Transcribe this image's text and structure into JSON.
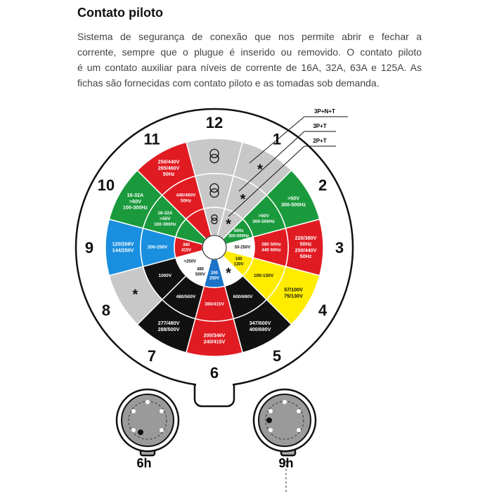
{
  "header": {
    "title": "Contato piloto",
    "paragraph": [
      "Sistema de segurança de conexão que nos permite abrir e fechar a",
      "corrente, sempre que o plugue é inserido ou removido. O contato piloto",
      "é um contato auxiliar para níveis de corrente de 16A, 32A, 63A e 125A. As",
      "fichas são fornecidas com contato piloto e as tomadas sob demanda."
    ]
  },
  "diagram": {
    "legend": [
      "3P+N+T",
      "3P+T",
      "2P+T"
    ],
    "connectors": [
      "6h",
      "9h"
    ],
    "segments": [
      {
        "hour": "12",
        "outer": {
          "color": "#c8c8c8"
        },
        "middle": {
          "color": "#c8c8c8"
        },
        "inner": {
          "color": "#c8c8c8"
        }
      },
      {
        "hour": "1",
        "outer": {
          "color": "#c8c8c8",
          "text": [
            "*"
          ]
        },
        "middle": {
          "color": "#c8c8c8",
          "text": [
            "*"
          ]
        },
        "inner": {
          "color": "#c8c8c8",
          "text": [
            "*"
          ]
        }
      },
      {
        "hour": "2",
        "outer": {
          "color": "#1a9a3c",
          "text": [
            ">50V",
            "300-500Hz"
          ]
        },
        "middle": {
          "color": "#1a9a3c",
          "text": [
            ">50V",
            "300-500Hz"
          ]
        },
        "inner": {
          "color": "#1a9a3c",
          "text": [
            "50Hz",
            "300-500Hz"
          ]
        }
      },
      {
        "hour": "3",
        "outer": {
          "color": "#e11b22",
          "text": [
            "220/380V",
            "50Hz",
            "250/440V",
            "50Hz"
          ]
        },
        "middle": {
          "color": "#e11b22",
          "text": [
            "380 50Hz",
            "440 60Hz"
          ]
        },
        "inner": {
          "color": "#ffffff",
          "text": [
            "50-250V"
          ]
        }
      },
      {
        "hour": "4",
        "outer": {
          "color": "#ffec00",
          "text": [
            "57/100V",
            "75/130V"
          ]
        },
        "middle": {
          "color": "#ffec00",
          "text": [
            "100-130V"
          ]
        },
        "inner": {
          "color": "#ffec00",
          "text": [
            "100",
            "130V"
          ]
        }
      },
      {
        "hour": "5",
        "outer": {
          "color": "#111111",
          "text": [
            "347/600V",
            "400/690V"
          ]
        },
        "middle": {
          "color": "#111111",
          "text": [
            "600/690V"
          ]
        },
        "inner": {
          "color": "#ffffff",
          "text": [
            "*"
          ]
        }
      },
      {
        "hour": "6",
        "outer": {
          "color": "#e11b22",
          "text": [
            "200/346V",
            "240/415V"
          ]
        },
        "middle": {
          "color": "#e11b22",
          "text": [
            "380/415V"
          ]
        },
        "inner": {
          "color": "#1a73c9",
          "text": [
            "200",
            "250V"
          ]
        }
      },
      {
        "hour": "7",
        "outer": {
          "color": "#111111",
          "text": [
            "277/480V",
            "288/500V"
          ]
        },
        "middle": {
          "color": "#111111",
          "text": [
            "480/500V"
          ]
        },
        "inner": {
          "color": "#ffffff",
          "text": [
            "480",
            "500V"
          ]
        }
      },
      {
        "hour": "8",
        "outer": {
          "color": "#c8c8c8",
          "text": [
            "*"
          ]
        },
        "middle": {
          "color": "#111111",
          "text": [
            "1000V"
          ]
        },
        "inner": {
          "color": "#ffffff",
          "text": [
            ">250V"
          ]
        }
      },
      {
        "hour": "9",
        "outer": {
          "color": "#1a8fe0",
          "text": [
            "120/208V",
            "144/250V"
          ]
        },
        "middle": {
          "color": "#1a8fe0",
          "text": [
            "200-250V"
          ]
        },
        "inner": {
          "color": "#e11b22",
          "text": [
            "380",
            "415V"
          ]
        }
      },
      {
        "hour": "10",
        "outer": {
          "color": "#1a9a3c",
          "text": [
            "16-32A",
            ">50V",
            "100-300Hz"
          ]
        },
        "middle": {
          "color": "#1a9a3c",
          "text": [
            "16-32A",
            ">50V",
            "100-300Hz"
          ]
        },
        "inner": {
          "color": "#1a9a3c"
        }
      },
      {
        "hour": "11",
        "outer": {
          "color": "#e11b22",
          "text": [
            "250/440V",
            "265/460V",
            "50Hz"
          ]
        },
        "middle": {
          "color": "#e11b22",
          "text": [
            "440/460V",
            "50Hz"
          ]
        },
        "inner": {
          "color": "#e11b22"
        }
      }
    ]
  }
}
